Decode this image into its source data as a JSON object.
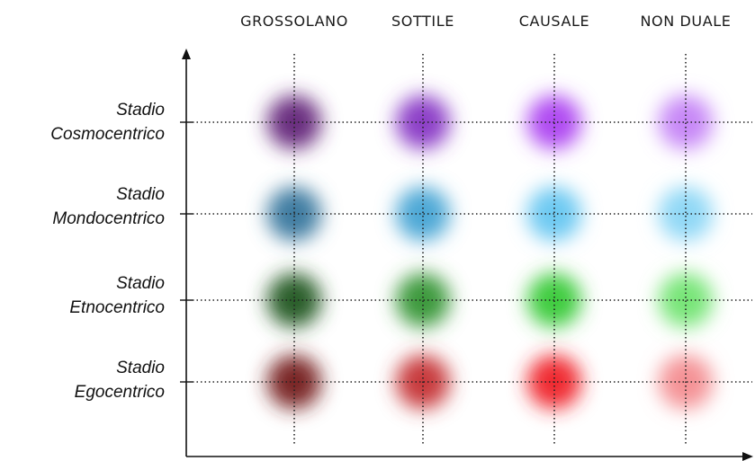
{
  "columns": [
    {
      "label": "GROSSOLANO"
    },
    {
      "label": "SOTTILE"
    },
    {
      "label": "CAUSALE"
    },
    {
      "label": "NON DUALE"
    }
  ],
  "rows": [
    {
      "line1": "Stadio",
      "line2": "Cosmocentrico",
      "colors": [
        "#6a2f80",
        "#8d3fc8",
        "#b04cf2",
        "#c788f7"
      ]
    },
    {
      "line1": "Stadio",
      "line2": "Mondocentrico",
      "colors": [
        "#3f7da2",
        "#4ea8d6",
        "#6dc9f2",
        "#90d8f6"
      ]
    },
    {
      "line1": "Stadio",
      "line2": "Etnocentrico",
      "colors": [
        "#2a5e2a",
        "#3e9a3e",
        "#3fcc3f",
        "#78e578"
      ]
    },
    {
      "line1": "Stadio",
      "line2": "Egocentrico",
      "colors": [
        "#7a2628",
        "#c83a3c",
        "#f02b31",
        "#f49295"
      ]
    }
  ]
}
